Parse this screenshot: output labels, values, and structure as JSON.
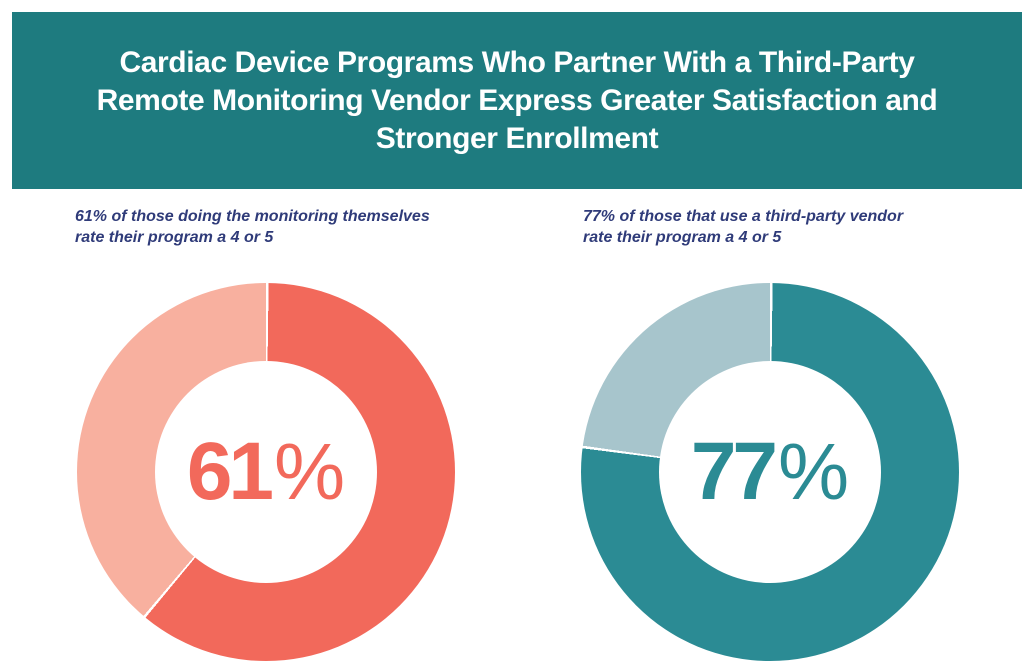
{
  "header": {
    "lines": [
      "Cardiac Device Programs Who Partner With a Third-Party",
      "Remote Monitoring Vendor Express Greater Satisfaction and",
      "Stronger Enrollment"
    ],
    "background": "#1e7b7f",
    "text_color": "#ffffff"
  },
  "styles": {
    "page_background": "#ffffff",
    "caption_color": "#2f3b79",
    "donut_hole_color": "#ffffff"
  },
  "chart_data": [
    {
      "type": "pie",
      "variant": "donut",
      "caption_lines": [
        "61% of those doing the monitoring themselves",
        "rate their program a 4 or 5"
      ],
      "center_label": {
        "number": "61",
        "percent_sign": "%"
      },
      "slices": [
        {
          "label": "rate their program a 4 or 5",
          "value": 61,
          "color": "#f2695b"
        },
        {
          "label": "other",
          "value": 39,
          "color": "#f8b09f"
        }
      ],
      "start_angle_deg": 0,
      "direction": "clockwise",
      "legend": "none"
    },
    {
      "type": "pie",
      "variant": "donut",
      "caption_lines": [
        "77% of those that use a third-party vendor",
        "rate their program a 4 or 5"
      ],
      "center_label": {
        "number": "77",
        "percent_sign": "%"
      },
      "slices": [
        {
          "label": "rate their program a 4 or 5",
          "value": 77,
          "color": "#2b8b94"
        },
        {
          "label": "other",
          "value": 23,
          "color": "#a7c5cc"
        }
      ],
      "start_angle_deg": 0,
      "direction": "clockwise",
      "legend": "none"
    }
  ]
}
